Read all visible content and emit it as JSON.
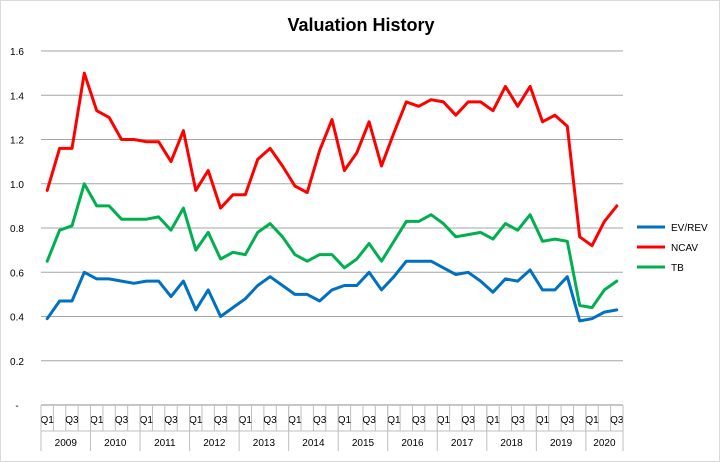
{
  "chart_data": {
    "type": "line",
    "title": "Valuation History",
    "xlabel": "",
    "ylabel": "",
    "ylim": [
      0,
      1.6
    ],
    "y_ticks": [
      "-",
      "0.2",
      "0.4",
      "0.6",
      "0.8",
      "1.0",
      "1.2",
      "1.4",
      "1.6"
    ],
    "grid": "horizontal",
    "legend_position": "right",
    "x_quarter_labels": [
      "Q1",
      "",
      "Q3",
      ""
    ],
    "years": [
      "2009",
      "2010",
      "2011",
      "2012",
      "2013",
      "2014",
      "2015",
      "2016",
      "2017",
      "2018",
      "2019",
      "2020"
    ],
    "series": [
      {
        "name": "EV/REV",
        "color": "#0070c0",
        "values": [
          0.39,
          0.47,
          0.47,
          0.6,
          0.57,
          0.57,
          0.56,
          0.55,
          0.56,
          0.56,
          0.49,
          0.56,
          0.43,
          0.52,
          0.4,
          0.44,
          0.48,
          0.54,
          0.58,
          0.54,
          0.5,
          0.5,
          0.47,
          0.52,
          0.54,
          0.54,
          0.6,
          0.52,
          0.58,
          0.65,
          0.65,
          0.65,
          0.62,
          0.59,
          0.6,
          0.56,
          0.51,
          0.57,
          0.56,
          0.61,
          0.52,
          0.52,
          0.58,
          0.38,
          0.39,
          0.42,
          0.43
        ]
      },
      {
        "name": "NCAV",
        "color": "#ff0000",
        "values": [
          0.97,
          1.16,
          1.16,
          1.5,
          1.33,
          1.3,
          1.2,
          1.2,
          1.19,
          1.19,
          1.1,
          1.24,
          0.97,
          1.06,
          0.89,
          0.95,
          0.95,
          1.11,
          1.16,
          1.08,
          0.99,
          0.96,
          1.15,
          1.29,
          1.06,
          1.14,
          1.28,
          1.08,
          1.23,
          1.37,
          1.35,
          1.38,
          1.37,
          1.31,
          1.37,
          1.37,
          1.33,
          1.44,
          1.35,
          1.44,
          1.28,
          1.31,
          1.26,
          0.76,
          0.72,
          0.83,
          0.9
        ]
      },
      {
        "name": "TB",
        "color": "#00b050",
        "values": [
          0.65,
          0.79,
          0.81,
          1.0,
          0.9,
          0.9,
          0.84,
          0.84,
          0.84,
          0.85,
          0.79,
          0.89,
          0.7,
          0.78,
          0.66,
          0.69,
          0.68,
          0.78,
          0.82,
          0.76,
          0.68,
          0.65,
          0.68,
          0.68,
          0.62,
          0.66,
          0.73,
          0.65,
          0.74,
          0.83,
          0.83,
          0.86,
          0.82,
          0.76,
          0.77,
          0.78,
          0.75,
          0.82,
          0.79,
          0.86,
          0.74,
          0.75,
          0.74,
          0.45,
          0.44,
          0.52,
          0.56
        ]
      }
    ]
  }
}
